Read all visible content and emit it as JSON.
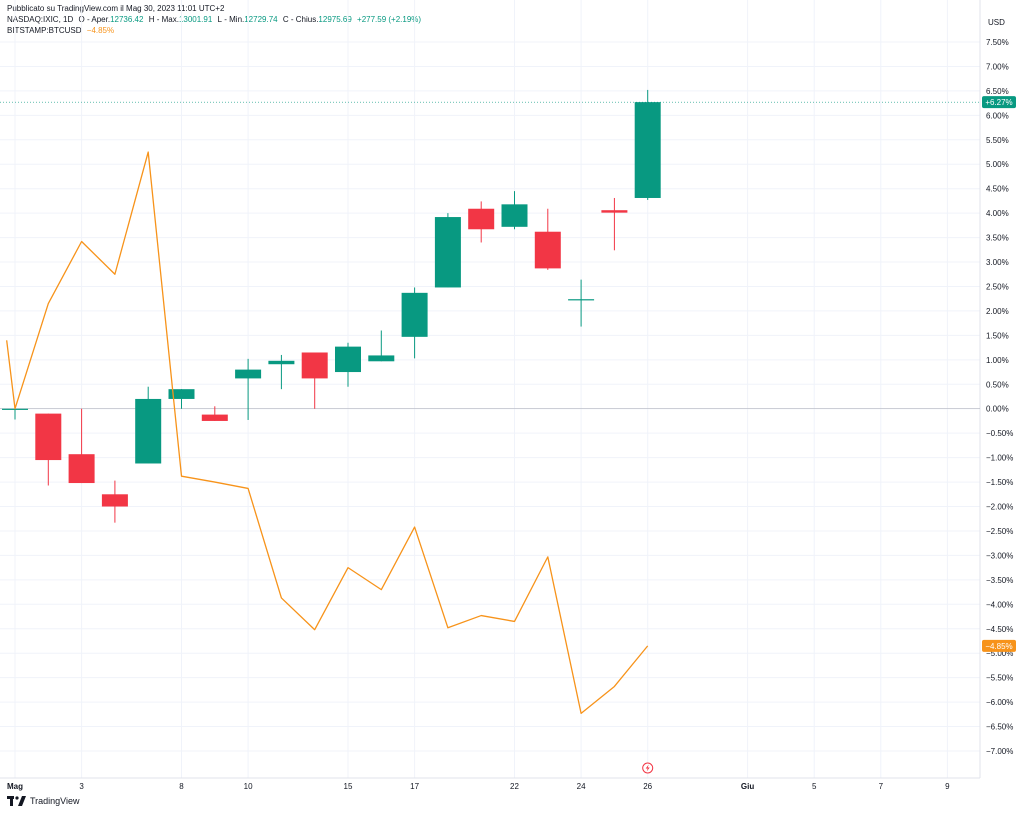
{
  "header": {
    "published": "Pubblicato su TradingView.com il Mag 30, 2023 11:01 UTC+2",
    "symbol": "NASDAQ:IXIC, 1D",
    "open_label": "O",
    "open_text": "- Aper.",
    "open_value": "12736.42",
    "high_label": "H",
    "high_text": "- Max.",
    "high_value": "13001.91",
    "low_label": "L",
    "low_text": "- Min.",
    "low_value": "12729.74",
    "close_label": "C",
    "close_text": "- Chius.",
    "close_value": "12975.69",
    "change": "+277.59 (+2.19%)",
    "compare_symbol": "BITSTAMP:BTCUSD",
    "compare_value": "−4.85%"
  },
  "axis": {
    "currency": "USD"
  },
  "footer": {
    "brand": "TradingView"
  },
  "colors": {
    "up": "#089981",
    "down": "#f23645",
    "btc_line": "#f7931a",
    "grid": "#f0f3fa",
    "text": "#131722"
  },
  "chart_data": {
    "type": "candlestick",
    "y_unit": "%",
    "ylim": [
      -7.0,
      7.5
    ],
    "y_ticks": [
      7.5,
      7.0,
      6.5,
      6.0,
      5.5,
      5.0,
      4.5,
      4.0,
      3.5,
      3.0,
      2.5,
      2.0,
      1.5,
      1.0,
      0.5,
      0.0,
      -0.5,
      -1.0,
      -1.5,
      -2.0,
      -2.5,
      -3.0,
      -3.5,
      -4.0,
      -4.5,
      -5.0,
      -5.5,
      -6.0,
      -6.5,
      -7.0
    ],
    "y_tick_labels": [
      "7.50%",
      "7.00%",
      "6.50%",
      "6.00%",
      "5.50%",
      "5.00%",
      "4.50%",
      "4.00%",
      "3.50%",
      "3.00%",
      "2.50%",
      "2.00%",
      "1.50%",
      "1.00%",
      "0.50%",
      "0.00%",
      "−0.50%",
      "−1.00%",
      "−1.50%",
      "−2.00%",
      "−2.50%",
      "−3.00%",
      "−3.50%",
      "−4.00%",
      "−4.50%",
      "−5.00%",
      "−5.50%",
      "−6.00%",
      "−6.50%",
      "−7.00%"
    ],
    "x_ticks": [
      {
        "label": "Mag",
        "day": 0,
        "bold": true
      },
      {
        "label": "3",
        "day": 2
      },
      {
        "label": "8",
        "day": 5
      },
      {
        "label": "10",
        "day": 7
      },
      {
        "label": "15",
        "day": 10
      },
      {
        "label": "17",
        "day": 12
      },
      {
        "label": "22",
        "day": 15
      },
      {
        "label": "24",
        "day": 17
      },
      {
        "label": "26",
        "day": 19
      },
      {
        "label": "Giu",
        "day": 22,
        "bold": true
      },
      {
        "label": "5",
        "day": 24
      },
      {
        "label": "7",
        "day": 26
      },
      {
        "label": "9",
        "day": 28
      }
    ],
    "series": [
      {
        "name": "NASDAQ:IXIC",
        "type": "candlestick",
        "candles": [
          {
            "day": 0,
            "o": 0.0,
            "h": 0.05,
            "l": -0.22,
            "c": 0.0
          },
          {
            "day": 1,
            "o": -0.1,
            "h": -0.1,
            "l": -1.57,
            "c": -1.05
          },
          {
            "day": 2,
            "o": -0.93,
            "h": 0.0,
            "l": -1.52,
            "c": -1.52
          },
          {
            "day": 3,
            "o": -1.75,
            "h": -1.47,
            "l": -2.33,
            "c": -2.0
          },
          {
            "day": 4,
            "o": -1.12,
            "h": 0.45,
            "l": -1.12,
            "c": 0.2
          },
          {
            "day": 5,
            "o": 0.2,
            "h": 0.4,
            "l": 0.0,
            "c": 0.4
          },
          {
            "day": 6,
            "o": -0.12,
            "h": 0.05,
            "l": -0.25,
            "c": -0.25
          },
          {
            "day": 7,
            "o": 0.62,
            "h": 1.02,
            "l": -0.23,
            "c": 0.8
          },
          {
            "day": 8,
            "o": 0.91,
            "h": 1.1,
            "l": 0.4,
            "c": 0.98
          },
          {
            "day": 9,
            "o": 1.15,
            "h": 1.15,
            "l": 0.0,
            "c": 0.62
          },
          {
            "day": 10,
            "o": 0.75,
            "h": 1.35,
            "l": 0.45,
            "c": 1.27
          },
          {
            "day": 11,
            "o": 0.97,
            "h": 1.6,
            "l": 0.97,
            "c": 1.09
          },
          {
            "day": 12,
            "o": 1.47,
            "h": 2.48,
            "l": 1.03,
            "c": 2.37
          },
          {
            "day": 13,
            "o": 2.48,
            "h": 4.0,
            "l": 2.48,
            "c": 3.92
          },
          {
            "day": 14,
            "o": 4.09,
            "h": 4.24,
            "l": 3.4,
            "c": 3.67
          },
          {
            "day": 15,
            "o": 3.72,
            "h": 4.45,
            "l": 3.67,
            "c": 4.18
          },
          {
            "day": 16,
            "o": 3.62,
            "h": 4.09,
            "l": 2.84,
            "c": 2.87
          },
          {
            "day": 17,
            "o": 2.24,
            "h": 2.64,
            "l": 1.68,
            "c": 2.24
          },
          {
            "day": 18,
            "o": 4.06,
            "h": 4.31,
            "l": 3.24,
            "c": 4.01
          },
          {
            "day": 19,
            "o": 4.31,
            "h": 6.52,
            "l": 4.27,
            "c": 6.27
          }
        ]
      },
      {
        "name": "BITSTAMP:BTCUSD",
        "type": "line",
        "days": [
          -0.25,
          0,
          1,
          2,
          3,
          4,
          5,
          6,
          7,
          8,
          9,
          10,
          11,
          12,
          13,
          14,
          15,
          16,
          17,
          18,
          19
        ],
        "values": [
          1.4,
          0.0,
          2.15,
          3.42,
          2.75,
          5.25,
          -1.38,
          -1.5,
          -1.63,
          -3.87,
          -4.52,
          -3.25,
          -3.7,
          -2.42,
          -4.48,
          -4.23,
          -4.35,
          -3.03,
          -6.23,
          -5.68,
          -4.85
        ]
      }
    ],
    "price_labels": [
      {
        "series": "NASDAQ:IXIC",
        "value": 6.27,
        "text": "+6.27%"
      },
      {
        "series": "BITSTAMP:BTCUSD",
        "value": -4.85,
        "text": "−4.85%"
      }
    ],
    "zero_line": 0.0
  }
}
